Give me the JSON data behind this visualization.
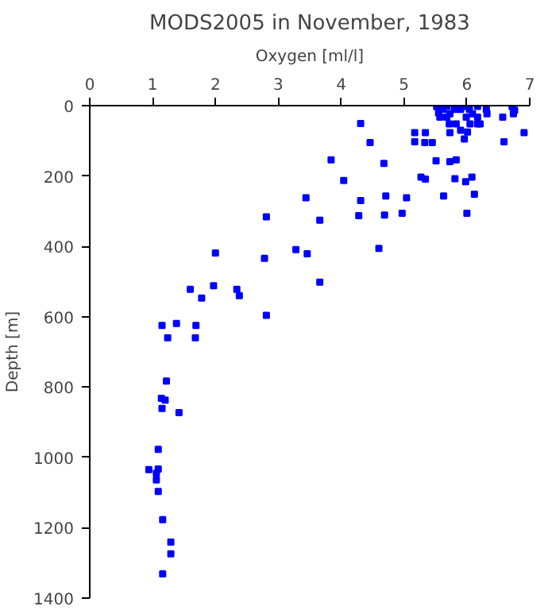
{
  "chart_data": {
    "type": "scatter",
    "title": "MODS2005 in November, 1983",
    "xlabel": "Oxygen [ml/l]",
    "ylabel": "Depth [m]",
    "xlim": [
      0,
      7
    ],
    "xticks": [
      0,
      1,
      2,
      3,
      4,
      5,
      6,
      7
    ],
    "ylim": [
      1400,
      0
    ],
    "yticks": [
      0,
      200,
      400,
      600,
      800,
      1000,
      1200,
      1400
    ],
    "grid": false,
    "marker": "square",
    "series": [
      {
        "color": "#0000ff",
        "x": [
          3.44,
          2.81,
          2.0,
          2.78,
          3.28,
          3.46,
          1.6,
          1.78,
          1.97,
          2.34,
          2.38,
          2.81,
          1.15,
          1.38,
          1.69,
          1.24,
          1.68,
          1.22,
          1.14,
          1.2,
          1.15,
          1.42,
          1.09,
          0.94,
          1.09,
          1.06,
          1.06,
          1.09,
          1.16,
          1.29,
          1.29,
          1.16,
          4.31,
          4.46,
          3.84,
          4.04,
          4.68,
          4.31,
          4.71,
          3.66,
          4.28,
          4.69,
          4.97,
          5.04,
          4.6,
          3.66,
          5.17,
          5.34,
          5.17,
          5.33,
          5.45,
          5.51,
          5.73,
          5.83,
          5.27,
          5.34,
          5.81,
          5.98,
          6.08,
          5.63,
          6.12,
          6.0,
          6.59,
          6.91,
          6.57,
          6.72,
          6.76,
          6.74,
          5.52,
          5.62,
          5.68,
          5.55,
          5.57,
          5.73,
          5.8,
          5.9,
          5.97,
          6.04,
          6.17,
          6.31,
          6.32,
          6.09,
          6.17,
          5.99,
          5.68,
          5.72,
          5.83,
          6.05,
          6.17,
          6.21,
          5.73,
          5.9,
          6.01,
          5.96
        ],
        "values": [
          262,
          316,
          419,
          434,
          409,
          421,
          522,
          547,
          512,
          522,
          540,
          596,
          625,
          619,
          625,
          660,
          660,
          783,
          832,
          837,
          861,
          873,
          977,
          1035,
          1033,
          1045,
          1064,
          1097,
          1177,
          1241,
          1274,
          1331,
          51,
          105,
          154,
          213,
          164,
          270,
          257,
          326,
          313,
          311,
          306,
          262,
          406,
          502,
          77,
          77,
          103,
          105,
          105,
          157,
          159,
          154,
          203,
          209,
          208,
          216,
          203,
          257,
          252,
          306,
          103,
          77,
          33,
          3,
          13,
          23,
          3,
          11,
          2,
          21,
          33,
          23,
          11,
          11,
          2,
          11,
          2,
          11,
          23,
          23,
          33,
          33,
          33,
          52,
          52,
          52,
          52,
          52,
          77,
          70,
          75,
          95
        ]
      }
    ]
  }
}
